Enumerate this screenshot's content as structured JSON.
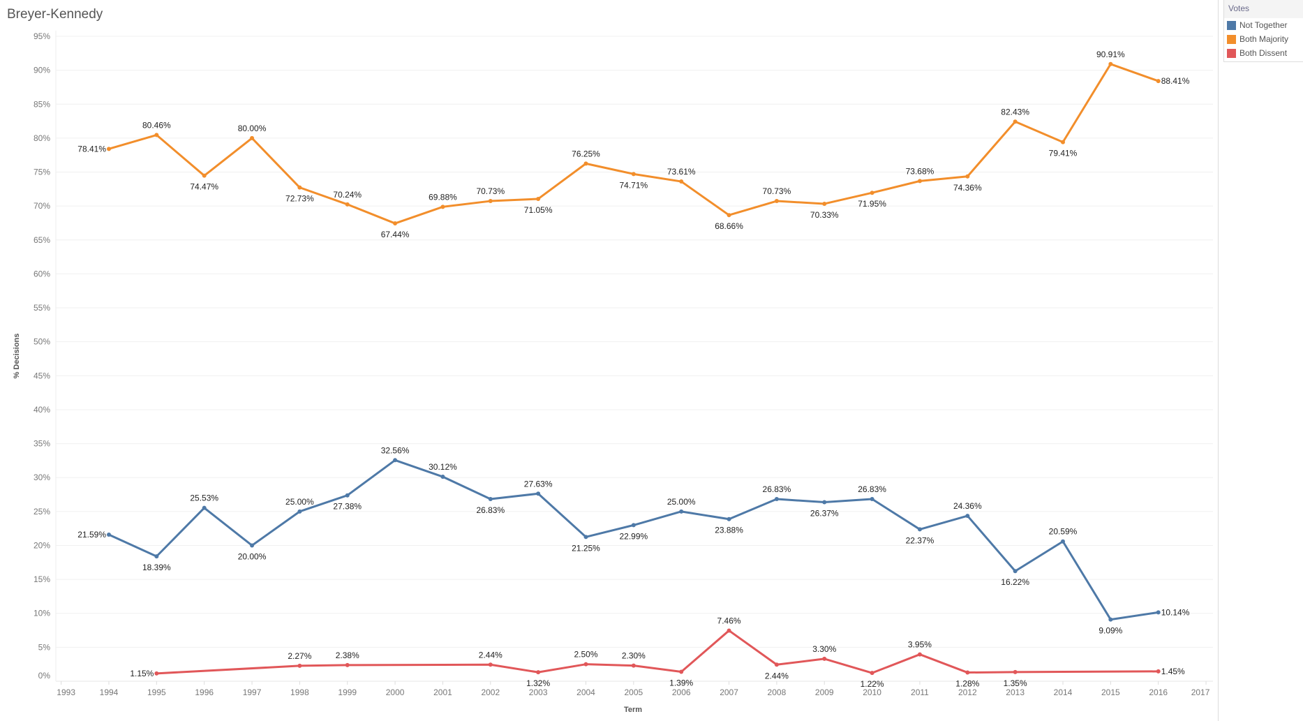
{
  "title": "Breyer-Kennedy",
  "legend": {
    "title": "Votes",
    "items": [
      {
        "label": "Not Together",
        "color": "#4e79a7"
      },
      {
        "label": "Both Majority",
        "color": "#f28e2b"
      },
      {
        "label": "Both Dissent",
        "color": "#e15759"
      }
    ]
  },
  "chart_data": {
    "type": "line",
    "title": "Breyer-Kennedy",
    "xlabel": "Term",
    "ylabel": "% Decisions",
    "xlim": [
      1993,
      2017
    ],
    "ylim": [
      0,
      95
    ],
    "x_ticks": [
      "1993",
      "1994",
      "1995",
      "1996",
      "1997",
      "1998",
      "1999",
      "2000",
      "2001",
      "2002",
      "2003",
      "2004",
      "2005",
      "2006",
      "2007",
      "2008",
      "2009",
      "2010",
      "2011",
      "2012",
      "2013",
      "2014",
      "2015",
      "2016",
      "2017"
    ],
    "y_ticks": [
      "0%",
      "5%",
      "10%",
      "15%",
      "20%",
      "25%",
      "30%",
      "35%",
      "40%",
      "45%",
      "50%",
      "55%",
      "60%",
      "65%",
      "70%",
      "75%",
      "80%",
      "85%",
      "90%",
      "95%"
    ],
    "grid": true,
    "legend_position": "top-right",
    "series": [
      {
        "name": "Not Together",
        "color": "#4e79a7",
        "points": [
          [
            1994,
            21.59
          ],
          [
            1995,
            18.39
          ],
          [
            1996,
            25.53
          ],
          [
            1997,
            20.0
          ],
          [
            1998,
            25.0
          ],
          [
            1999,
            27.38
          ],
          [
            2000,
            32.56
          ],
          [
            2001,
            30.12
          ],
          [
            2002,
            26.83
          ],
          [
            2003,
            27.63
          ],
          [
            2004,
            21.25
          ],
          [
            2005,
            22.99
          ],
          [
            2006,
            25.0
          ],
          [
            2007,
            23.88
          ],
          [
            2008,
            26.83
          ],
          [
            2009,
            26.37
          ],
          [
            2010,
            26.83
          ],
          [
            2011,
            22.37
          ],
          [
            2012,
            24.36
          ],
          [
            2013,
            16.22
          ],
          [
            2014,
            20.59
          ],
          [
            2015,
            9.09
          ],
          [
            2016,
            10.14
          ]
        ]
      },
      {
        "name": "Both Majority",
        "color": "#f28e2b",
        "points": [
          [
            1994,
            78.41
          ],
          [
            1995,
            80.46
          ],
          [
            1996,
            74.47
          ],
          [
            1997,
            80.0
          ],
          [
            1998,
            72.73
          ],
          [
            1999,
            70.24
          ],
          [
            2000,
            67.44
          ],
          [
            2001,
            69.88
          ],
          [
            2002,
            70.73
          ],
          [
            2003,
            71.05
          ],
          [
            2004,
            76.25
          ],
          [
            2005,
            74.71
          ],
          [
            2006,
            73.61
          ],
          [
            2007,
            68.66
          ],
          [
            2008,
            70.73
          ],
          [
            2009,
            70.33
          ],
          [
            2010,
            71.95
          ],
          [
            2011,
            73.68
          ],
          [
            2012,
            74.36
          ],
          [
            2013,
            82.43
          ],
          [
            2014,
            79.41
          ],
          [
            2015,
            90.91
          ],
          [
            2016,
            88.41
          ]
        ]
      },
      {
        "name": "Both Dissent",
        "color": "#e15759",
        "points": [
          [
            1995,
            1.15
          ],
          [
            1998,
            2.27
          ],
          [
            1999,
            2.38
          ],
          [
            2002,
            2.44
          ],
          [
            2003,
            1.32
          ],
          [
            2004,
            2.5
          ],
          [
            2005,
            2.3
          ],
          [
            2006,
            1.39
          ],
          [
            2007,
            7.46
          ],
          [
            2008,
            2.44
          ],
          [
            2009,
            3.3
          ],
          [
            2010,
            1.22
          ],
          [
            2011,
            3.95
          ],
          [
            2012,
            1.28
          ],
          [
            2013,
            1.35
          ],
          [
            2016,
            1.45
          ]
        ]
      }
    ]
  }
}
